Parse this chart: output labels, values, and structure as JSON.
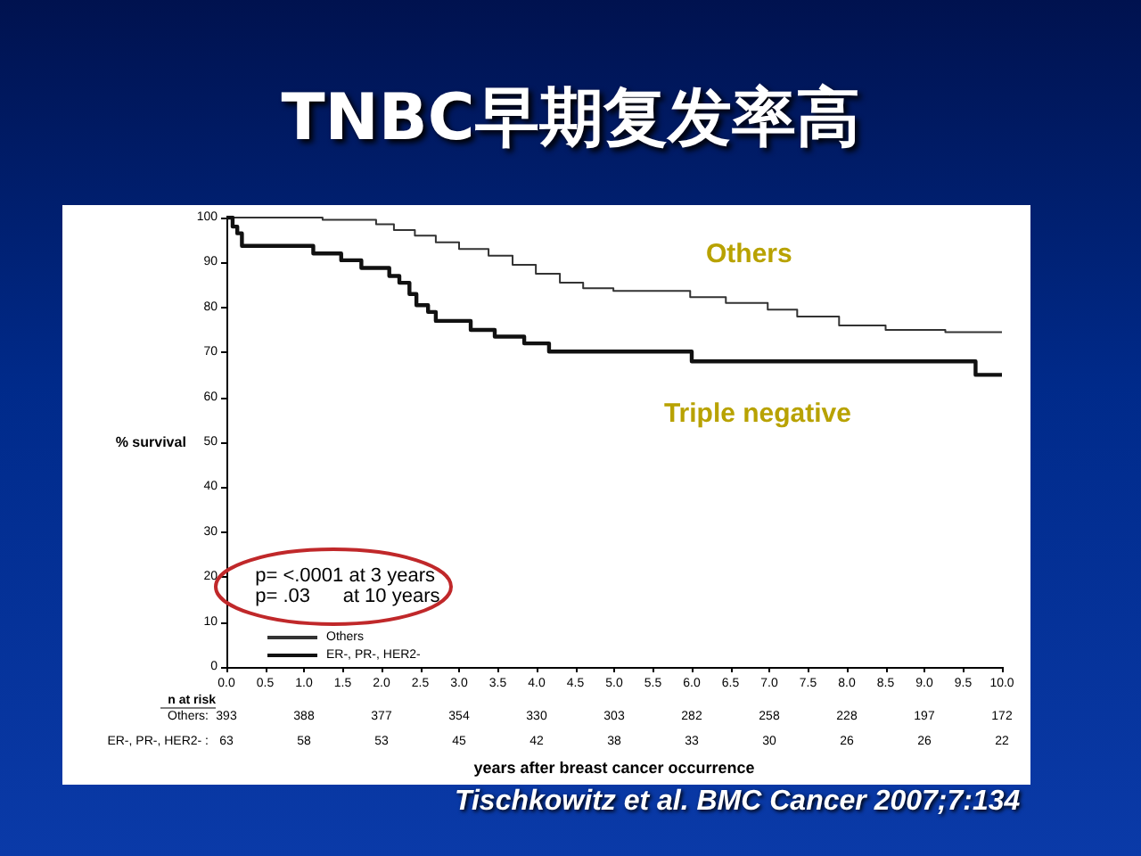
{
  "chart_data": {
    "type": "step",
    "title": "TNBC早期复发率高",
    "xlabel": "years after breast cancer occurrence",
    "ylabel": "% survival",
    "series": [
      {
        "name": "Others",
        "color": "#333333",
        "x": [
          0,
          1.24,
          1.93,
          2.16,
          2.43,
          2.7,
          3.0,
          3.38,
          3.69,
          3.99,
          4.3,
          4.6,
          4.99,
          5.98,
          6.44,
          6.98,
          7.36,
          7.9,
          8.5,
          9.27,
          10
        ],
        "values": [
          100,
          99.5,
          98.5,
          97.2,
          96,
          94.5,
          93,
          91.5,
          89.5,
          87.5,
          85.5,
          84.3,
          83.7,
          82.3,
          81,
          79.5,
          78,
          76,
          75,
          74.5,
          74.5
        ]
      },
      {
        "name": "ER-, PR-, HER2-",
        "color": "#111111",
        "x": [
          0,
          0.08,
          0.14,
          0.2,
          1.12,
          1.48,
          1.74,
          2.1,
          2.23,
          2.36,
          2.45,
          2.6,
          2.7,
          3.15,
          3.46,
          3.84,
          4.16,
          6.0,
          9.66,
          10
        ],
        "values": [
          100,
          98,
          96.5,
          93.7,
          92,
          90.5,
          88.8,
          87,
          85.5,
          83,
          80.5,
          79,
          77,
          75,
          73.5,
          72,
          70.2,
          68,
          65,
          65
        ]
      }
    ],
    "xlim": [
      0,
      10
    ],
    "xticks": [
      {
        "value": 0,
        "label": "0.0"
      },
      {
        "value": 0.5,
        "label": "0.5"
      },
      {
        "value": 1,
        "label": "1.0"
      },
      {
        "value": 1.5,
        "label": "1.5"
      },
      {
        "value": 2,
        "label": "2.0"
      },
      {
        "value": 2.5,
        "label": "2.5"
      },
      {
        "value": 3,
        "label": "3.0"
      },
      {
        "value": 3.5,
        "label": "3.5"
      },
      {
        "value": 4,
        "label": "4.0"
      },
      {
        "value": 4.5,
        "label": "4.5"
      },
      {
        "value": 5,
        "label": "5.0"
      },
      {
        "value": 5.5,
        "label": "5.5"
      },
      {
        "value": 6,
        "label": "6.0"
      },
      {
        "value": 6.5,
        "label": "6.5"
      },
      {
        "value": 7,
        "label": "7.0"
      },
      {
        "value": 7.5,
        "label": "7.5"
      },
      {
        "value": 8,
        "label": "8.0"
      },
      {
        "value": 8.5,
        "label": "8.5"
      },
      {
        "value": 9,
        "label": "9.0"
      },
      {
        "value": 9.5,
        "label": "9.5"
      },
      {
        "value": 10,
        "label": "10.0"
      }
    ],
    "ylim": [
      0,
      100
    ],
    "yticks": [
      0,
      10,
      20,
      30,
      40,
      50,
      60,
      70,
      80,
      90,
      100
    ],
    "grid": false,
    "legend": "bottom left",
    "marker": "none",
    "line_style": "solid",
    "annotations": [
      "Others",
      "Triple negative",
      "p= <.0001 at 3 years",
      "p= .03      at 10 years",
      "n at risk",
      "Others: 393 388 377 354 330 303 282 258 228 197 172",
      "ER-, PR-, HER2- : 63 58 53 45 42 38 33 30 26 26 22",
      "Tischkowitz et al. BMC Cancer 2007;7:134"
    ]
  }
}
